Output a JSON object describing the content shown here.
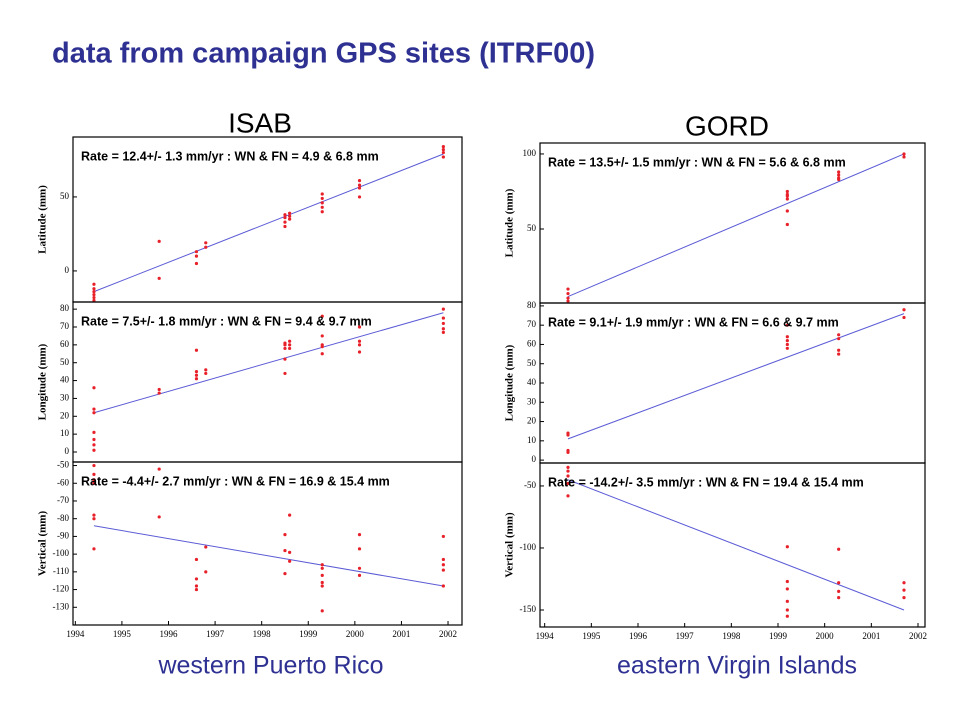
{
  "title": "data from campaign GPS sites (ITRF00)",
  "sites": [
    {
      "name": "ISAB",
      "caption": "western Puerto Rico",
      "chart_data": [
        {
          "type": "scatter",
          "ylabel": "Latitude (mm)",
          "annotation": "Rate = 12.4+/- 1.3 mm/yr : WN & FN = 4.9 & 6.8 mm",
          "xlim": [
            1993.95,
            2002.3
          ],
          "ylim": [
            -21,
            90.5
          ],
          "yticks": [
            0,
            50
          ],
          "color": "#e8202a",
          "x": [
            1994.4,
            1994.4,
            1994.4,
            1994.4,
            1994.4,
            1994.4,
            1995.8,
            1995.8,
            1996.6,
            1996.6,
            1996.6,
            1996.8,
            1996.8,
            1998.5,
            1998.5,
            1998.5,
            1998.5,
            1998.6,
            1998.6,
            1998.6,
            1999.3,
            1999.3,
            1999.3,
            1999.3,
            1999.3,
            2000.1,
            2000.1,
            2000.1,
            2000.1,
            2001.9,
            2001.9,
            2001.9,
            2001.9
          ],
          "values": [
            -9,
            -12,
            -14,
            -16,
            -18,
            -20,
            -5,
            20,
            5,
            10,
            13,
            16,
            19,
            30,
            33,
            36,
            38,
            35,
            37,
            39,
            40,
            43,
            46,
            49,
            52,
            50,
            56,
            58,
            61,
            77,
            80,
            82,
            84
          ],
          "trend": {
            "x": [
              1994.4,
              2001.9
            ],
            "values": [
              -14,
              79
            ],
            "color": "#5b5bd6"
          }
        },
        {
          "type": "scatter",
          "ylabel": "Longitude (mm)",
          "annotation": "Rate = 7.5+/- 1.8 mm/yr : WN & FN = 9.4 & 9.7 mm",
          "xlim": [
            1993.95,
            2002.3
          ],
          "ylim": [
            -5.6,
            84
          ],
          "yticks": [
            0,
            10,
            20,
            30,
            40,
            50,
            60,
            70,
            80
          ],
          "color": "#e8202a",
          "x": [
            1994.4,
            1994.4,
            1994.4,
            1994.4,
            1994.4,
            1994.4,
            1994.4,
            1995.8,
            1995.8,
            1996.6,
            1996.6,
            1996.6,
            1996.6,
            1996.8,
            1996.8,
            1998.5,
            1998.5,
            1998.5,
            1998.5,
            1998.5,
            1998.6,
            1998.6,
            1998.6,
            1999.3,
            1999.3,
            1999.3,
            1999.3,
            1999.3,
            2000.1,
            2000.1,
            2000.1,
            2000.1,
            2001.9,
            2001.9,
            2001.9,
            2001.9,
            2001.9
          ],
          "values": [
            36,
            24,
            22,
            11,
            7,
            4,
            1,
            35,
            33,
            57,
            45,
            43,
            41,
            46,
            44,
            44,
            52,
            58,
            60,
            61,
            62,
            60,
            58,
            55,
            59,
            60,
            65,
            76,
            56,
            60,
            62,
            70,
            67,
            69,
            72,
            75,
            80
          ],
          "trend": {
            "x": [
              1994.4,
              2001.9
            ],
            "values": [
              22,
              78
            ],
            "color": "#5b5bd6"
          }
        },
        {
          "type": "scatter",
          "ylabel": "Vertical (mm)",
          "annotation": "Rate = -4.4+/- 2.7 mm/yr : WN & FN = 16.9 & 15.4 mm",
          "xlim": [
            1993.95,
            2002.3
          ],
          "ylim": [
            -140,
            -48
          ],
          "yticks": [
            -50,
            -60,
            -70,
            -80,
            -90,
            -100,
            -110,
            -120,
            -130
          ],
          "xticks": [
            1994,
            1995,
            1996,
            1997,
            1998,
            1999,
            2000,
            2001,
            2002
          ],
          "color": "#e8202a",
          "x": [
            1994.4,
            1994.4,
            1994.4,
            1994.4,
            1994.4,
            1994.4,
            1994.4,
            1995.8,
            1995.8,
            1996.6,
            1996.6,
            1996.6,
            1996.6,
            1996.8,
            1996.8,
            1998.5,
            1998.5,
            1998.5,
            1998.6,
            1998.6,
            1998.6,
            1999.3,
            1999.3,
            1999.3,
            1999.3,
            1999.3,
            1999.3,
            2000.1,
            2000.1,
            2000.1,
            2000.1,
            2001.9,
            2001.9,
            2001.9,
            2001.9,
            2001.9
          ],
          "values": [
            -50,
            -55,
            -58,
            -60,
            -78,
            -80,
            -97,
            -52,
            -79,
            -103,
            -114,
            -118,
            -120,
            -96,
            -110,
            -89,
            -98,
            -111,
            -78,
            -99,
            -104,
            -106,
            -108,
            -112,
            -116,
            -118,
            -132,
            -89,
            -97,
            -108,
            -112,
            -90,
            -103,
            -106,
            -109,
            -118
          ],
          "trend": {
            "x": [
              1994.4,
              2001.9
            ],
            "values": [
              -84,
              -118
            ],
            "color": "#5b5bd6"
          }
        }
      ]
    },
    {
      "name": "GORD",
      "caption": "eastern Virgin Islands",
      "chart_data": [
        {
          "type": "scatter",
          "ylabel": "Latitude (mm)",
          "annotation": "Rate = 13.5+/- 1.5 mm/yr : WN & FN = 5.6 & 6.8 mm",
          "xlim": [
            1993.9,
            2002.15
          ],
          "ylim": [
            0.7,
            107.3
          ],
          "yticks": [
            50,
            100
          ],
          "color": "#e8202a",
          "x": [
            1994.5,
            1994.5,
            1994.5,
            1994.5,
            1999.2,
            1999.2,
            1999.2,
            1999.2,
            1999.2,
            1999.2,
            2000.3,
            2000.3,
            2000.3,
            2000.3,
            2001.7,
            2001.7
          ],
          "values": [
            10,
            7,
            4,
            2,
            75,
            73,
            72,
            70,
            62,
            53,
            88,
            86,
            84,
            83,
            100,
            98
          ],
          "trend": {
            "x": [
              1994.5,
              2001.7
            ],
            "values": [
              5,
              100
            ],
            "color": "#5b5bd6"
          }
        },
        {
          "type": "scatter",
          "ylabel": "Longitude (mm)",
          "annotation": "Rate = 9.1+/- 1.9 mm/yr : WN & FN = 6.6 & 9.7 mm",
          "xlim": [
            1993.9,
            2002.15
          ],
          "ylim": [
            -1.5,
            81.5
          ],
          "yticks": [
            0,
            10,
            20,
            30,
            40,
            50,
            60,
            70,
            80
          ],
          "color": "#e8202a",
          "x": [
            1994.5,
            1994.5,
            1994.5,
            1994.5,
            1999.2,
            1999.2,
            1999.2,
            1999.2,
            1999.2,
            2000.3,
            2000.3,
            2000.3,
            2000.3,
            2001.7,
            2001.7
          ],
          "values": [
            14,
            13,
            5,
            4,
            70,
            64,
            62,
            60,
            58,
            65,
            63,
            57,
            55,
            78,
            74
          ],
          "trend": {
            "x": [
              1994.5,
              2001.7
            ],
            "values": [
              11,
              76
            ],
            "color": "#5b5bd6"
          }
        },
        {
          "type": "scatter",
          "ylabel": "Vertical (mm)",
          "annotation": "Rate = -14.2+/- 3.5 mm/yr : WN & FN = 19.4 & 15.4 mm",
          "xlim": [
            1993.9,
            2002.15
          ],
          "ylim": [
            -163.7,
            -31.5
          ],
          "yticks": [
            -50,
            -100,
            -150
          ],
          "xticks": [
            1994,
            1995,
            1996,
            1997,
            1998,
            1999,
            2000,
            2001,
            2002
          ],
          "color": "#e8202a",
          "x": [
            1994.5,
            1994.5,
            1994.5,
            1994.5,
            1994.5,
            1999.2,
            1999.2,
            1999.2,
            1999.2,
            1999.2,
            1999.2,
            2000.3,
            2000.3,
            2000.3,
            2000.3,
            2001.7,
            2001.7,
            2001.7
          ],
          "values": [
            -35,
            -38,
            -42,
            -48,
            -58,
            -99,
            -127,
            -133,
            -143,
            -150,
            -155,
            -101,
            -128,
            -135,
            -140,
            -128,
            -134,
            -140
          ],
          "trend": {
            "x": [
              1994.5,
              2001.7
            ],
            "values": [
              -45,
              -150
            ],
            "color": "#5b5bd6"
          }
        }
      ]
    }
  ]
}
